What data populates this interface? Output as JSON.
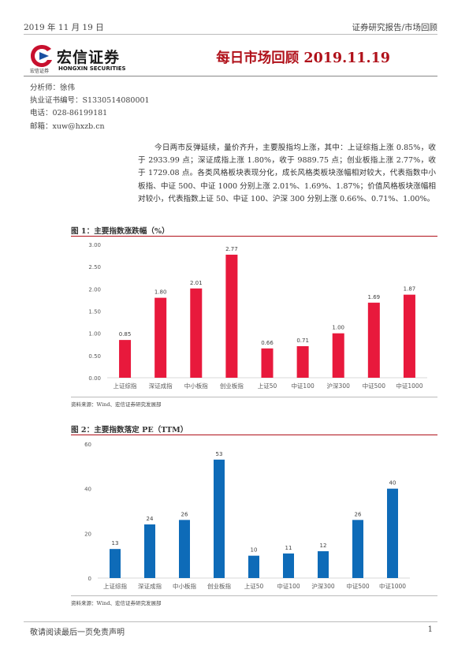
{
  "header": {
    "date": "2019 年 11 月 19 日",
    "category": "证券研究报告/市场回顾"
  },
  "logo": {
    "cn_name": "宏信证券",
    "small_cn": "宏信证券",
    "en_name": "HONGXIN SECURITIES"
  },
  "title": "每日市场回顾 2019.11.19",
  "analyst": {
    "name": "分析师：徐伟",
    "license": "执业证书编号：S1330514080001",
    "phone": "电话：028-86199181",
    "email": "邮箱：xuw@hxzb.cn"
  },
  "intro": "今日两市反弹延续，量价齐升，主要股指均上涨，其中：上证综指上涨 0.85%，收于 2933.99 点；深证成指上涨 1.80%，收于 9889.75 点；创业板指上涨 2.77%，收于 1729.08 点。各类风格板块表现分化，成长风格类板块涨幅相对较大，代表指数中小板指、中证 500、中证 1000 分别上涨 2.01%、1.69%、1.87%；价值风格板块涨幅相对较小，代表指数上证 50、中证 100、沪深 300 分别上涨 0.66%、0.71%、1.00%。",
  "figure1": {
    "title": "图 1：主要指数涨跌幅（%）",
    "source": "资料来源：Wind、宏信证券研究发展部"
  },
  "figure2": {
    "title": "图 2：主要指数落定 PE（TTM）",
    "source": "资料来源：Wind、宏信证券研究发展部"
  },
  "chart_data": [
    {
      "type": "bar",
      "categories": [
        "上证综指",
        "深证成指",
        "中小板指",
        "创业板指",
        "上证50",
        "中证100",
        "沪深300",
        "中证500",
        "中证1000"
      ],
      "values": [
        0.85,
        1.8,
        2.01,
        2.77,
        0.66,
        0.71,
        1.0,
        1.69,
        1.87
      ],
      "data_labels": [
        "0.85",
        "1.80",
        "2.01",
        "2.77",
        "0.66",
        "0.71",
        "1.00",
        "1.69",
        "1.87"
      ],
      "yticks": [
        "0.00",
        "0.50",
        "1.00",
        "1.50",
        "2.00",
        "2.50",
        "3.00"
      ],
      "ylim": [
        0,
        3
      ],
      "color": "#e8193c",
      "grid": false
    },
    {
      "type": "bar",
      "categories": [
        "上证综指",
        "深证成指",
        "中小板指",
        "创业板指",
        "上证50",
        "中证100",
        "沪深300",
        "中证500",
        "中证1000"
      ],
      "values": [
        13,
        24,
        26,
        53,
        10,
        11,
        12,
        26,
        40
      ],
      "data_labels": [
        "13",
        "24",
        "26",
        "53",
        "10",
        "11",
        "12",
        "26",
        "40"
      ],
      "yticks": [
        "0",
        "20",
        "40",
        "60"
      ],
      "ylim": [
        0,
        60
      ],
      "color": "#0e6bb8",
      "grid": false
    }
  ],
  "footer": {
    "disclaimer": "敬请阅读最后一页免责声明",
    "page": "1"
  }
}
